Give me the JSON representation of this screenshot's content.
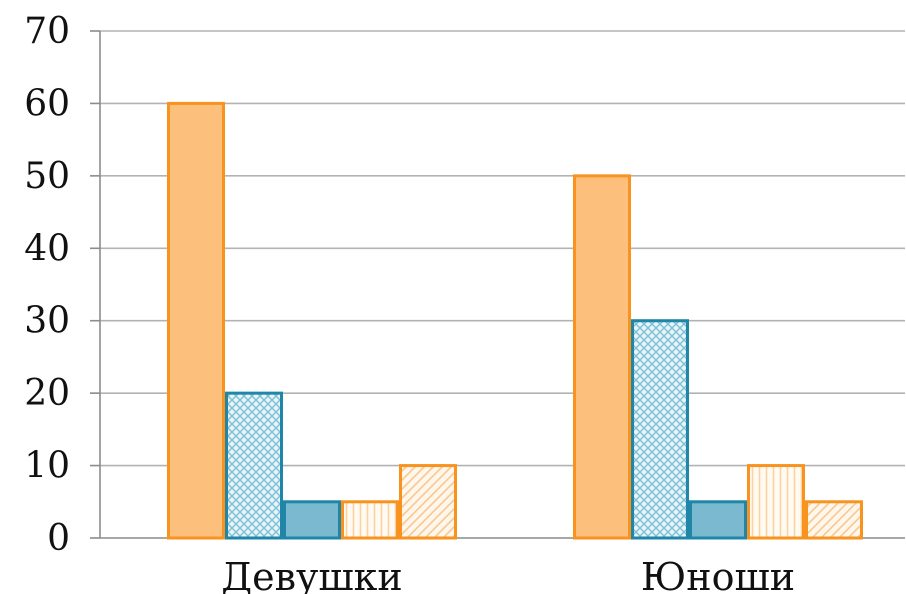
{
  "chart_data": {
    "type": "bar",
    "categories": [
      "Девушки",
      "Юноши"
    ],
    "series": [
      {
        "values": [
          60,
          50
        ],
        "fill": "#fcc07c",
        "stroke": "#f7931e",
        "pattern": "solid"
      },
      {
        "values": [
          20,
          30
        ],
        "fill": "#d5ecf3",
        "stroke": "#1f86a8",
        "pattern": "crosshatch"
      },
      {
        "values": [
          5,
          5
        ],
        "fill": "#7ab9d0",
        "stroke": "#1f86a8",
        "pattern": "solid"
      },
      {
        "values": [
          5,
          10
        ],
        "fill": "#fffaf2",
        "stroke": "#f7931e",
        "pattern": "vertical"
      },
      {
        "values": [
          10,
          5
        ],
        "fill": "#fff6ec",
        "stroke": "#f7931e",
        "pattern": "diagonal"
      }
    ],
    "ylim": [
      0,
      70
    ],
    "yticks": [
      "0",
      "10",
      "20",
      "30",
      "40",
      "50",
      "60",
      "70"
    ],
    "grid": true,
    "legend": "none",
    "colors": {
      "grid": "#b3b3b3",
      "axis": "#8c8c8c",
      "text": "#111111"
    }
  }
}
